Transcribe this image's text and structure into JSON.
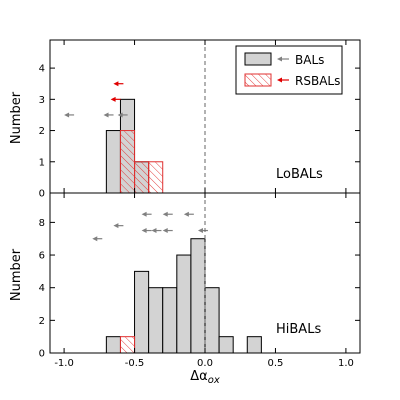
{
  "chart_data": [
    {
      "type": "bar",
      "panel_label": "LoBALs",
      "ylabel": "Number",
      "xlim": [
        -1.1,
        1.1
      ],
      "ylim": [
        0,
        4.9
      ],
      "yticks": [
        0,
        1,
        2,
        3,
        4
      ],
      "bin_edges": [
        -0.7,
        -0.6,
        -0.5,
        -0.4,
        -0.3
      ],
      "series": [
        {
          "name": "BALs",
          "style": "filled",
          "color": "#d3d3d3",
          "values": [
            2,
            3,
            1,
            0
          ]
        },
        {
          "name": "RSBALs",
          "style": "hatched",
          "color": "#e03030",
          "values": [
            0,
            2,
            1,
            1
          ]
        }
      ],
      "upper_limits": [
        {
          "series": "BALs",
          "x": -1.0,
          "y": 2.5
        },
        {
          "series": "BALs",
          "x": -0.72,
          "y": 2.5
        },
        {
          "series": "BALs",
          "x": -0.62,
          "y": 2.5
        },
        {
          "series": "RSBALs",
          "x": -0.67,
          "y": 3.0
        },
        {
          "series": "RSBALs",
          "x": -0.65,
          "y": 3.5
        }
      ],
      "reference_line": {
        "x": 0.0,
        "style": "dashed"
      },
      "legend": {
        "position": "top-right",
        "entries": [
          {
            "label": "BALs",
            "series": "BALs"
          },
          {
            "label": "RSBALs",
            "series": "RSBALs"
          }
        ]
      }
    },
    {
      "type": "bar",
      "panel_label": "HiBALs",
      "xlabel": "Δα_ox",
      "ylabel": "Number",
      "xlim": [
        -1.1,
        1.1
      ],
      "ylim": [
        0,
        9.8
      ],
      "yticks": [
        0,
        2,
        4,
        6,
        8
      ],
      "xticks": [
        "-1.0",
        "-0.5",
        "0.0",
        "0.5",
        "1.0"
      ],
      "xtick_values": [
        -1.0,
        -0.5,
        0.0,
        0.5,
        1.0
      ],
      "bin_edges": [
        -0.7,
        -0.6,
        -0.5,
        -0.4,
        -0.3,
        -0.2,
        -0.1,
        0.0,
        0.1,
        0.2,
        0.3,
        0.4
      ],
      "series": [
        {
          "name": "BALs",
          "style": "filled",
          "color": "#d3d3d3",
          "values": [
            1,
            0,
            5,
            4,
            4,
            6,
            7,
            4,
            1,
            0,
            1
          ]
        },
        {
          "name": "RSBALs",
          "style": "hatched",
          "color": "#e03030",
          "values": [
            0,
            1,
            0,
            0,
            0,
            0,
            0,
            0,
            0,
            0,
            0
          ]
        }
      ],
      "upper_limits": [
        {
          "series": "BALs",
          "x": -0.8,
          "y": 7.0
        },
        {
          "series": "BALs",
          "x": -0.65,
          "y": 7.8
        },
        {
          "series": "BALs",
          "x": -0.45,
          "y": 7.5
        },
        {
          "series": "BALs",
          "x": -0.38,
          "y": 7.5
        },
        {
          "series": "BALs",
          "x": -0.3,
          "y": 7.5
        },
        {
          "series": "BALs",
          "x": -0.45,
          "y": 8.5
        },
        {
          "series": "BALs",
          "x": -0.3,
          "y": 8.5
        },
        {
          "series": "BALs",
          "x": -0.15,
          "y": 8.5
        },
        {
          "series": "BALs",
          "x": -0.05,
          "y": 7.5
        }
      ],
      "reference_line": {
        "x": 0.0,
        "style": "dashed"
      }
    }
  ]
}
